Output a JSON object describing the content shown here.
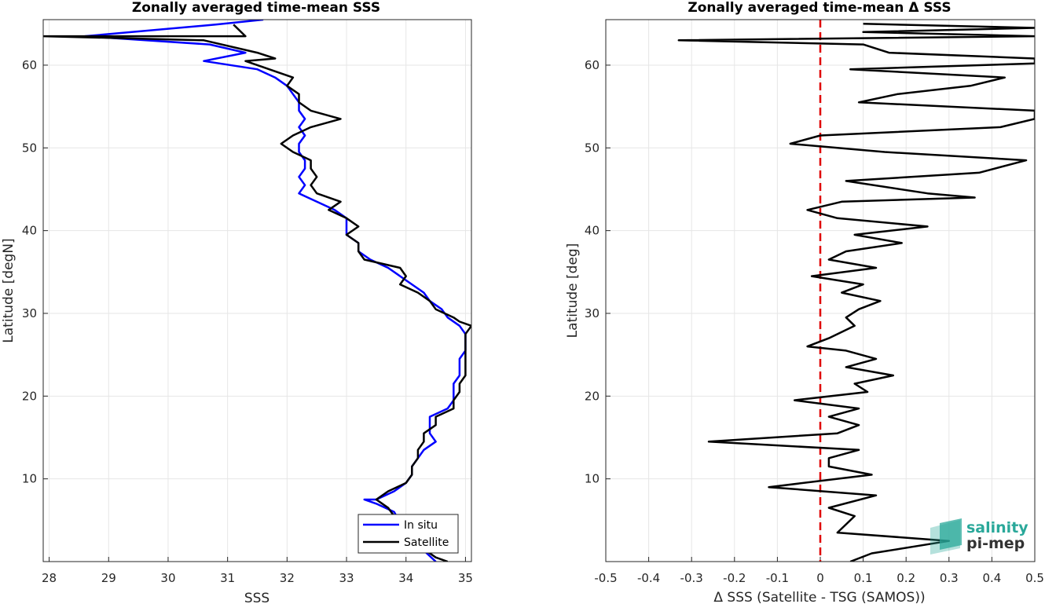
{
  "chart_data": [
    {
      "type": "line",
      "title": "Zonally averaged time-mean SSS",
      "xlabel": "SSS",
      "ylabel": "Latitude [degN]",
      "xlim": [
        27.9,
        35.1
      ],
      "ylim": [
        0,
        65.5
      ],
      "xticks": [
        "28",
        "29",
        "30",
        "31",
        "32",
        "33",
        "34",
        "35"
      ],
      "yticks": [
        "10",
        "20",
        "30",
        "40",
        "50",
        "60"
      ],
      "grid": true,
      "legend": {
        "position": "bottom-right",
        "entries": [
          "In situ",
          "Satellite"
        ]
      },
      "series": [
        {
          "name": "In situ",
          "color": "#0000ff",
          "points": [
            [
              31.6,
              65.5
            ],
            [
              30.8,
              64.9
            ],
            [
              28.6,
              63.5
            ],
            [
              30.7,
              62.5
            ],
            [
              31.3,
              61.5
            ],
            [
              30.6,
              60.5
            ],
            [
              31.5,
              59.5
            ],
            [
              31.8,
              58.5
            ],
            [
              32.0,
              57.5
            ],
            [
              32.1,
              56.5
            ],
            [
              32.2,
              55.5
            ],
            [
              32.2,
              54.5
            ],
            [
              32.3,
              53.5
            ],
            [
              32.2,
              52.5
            ],
            [
              32.3,
              51.5
            ],
            [
              32.2,
              50.5
            ],
            [
              32.2,
              49.5
            ],
            [
              32.3,
              48.5
            ],
            [
              32.3,
              47.5
            ],
            [
              32.2,
              46.5
            ],
            [
              32.3,
              45.5
            ],
            [
              32.2,
              44.5
            ],
            [
              32.5,
              43.5
            ],
            [
              32.8,
              42.5
            ],
            [
              33.0,
              41.5
            ],
            [
              33.0,
              40.5
            ],
            [
              33.0,
              39.5
            ],
            [
              33.2,
              38.5
            ],
            [
              33.2,
              37.5
            ],
            [
              33.4,
              36.5
            ],
            [
              33.7,
              35.5
            ],
            [
              33.9,
              34.5
            ],
            [
              34.1,
              33.5
            ],
            [
              34.3,
              32.5
            ],
            [
              34.4,
              31.5
            ],
            [
              34.6,
              30.5
            ],
            [
              34.7,
              29.5
            ],
            [
              34.9,
              28.5
            ],
            [
              35.0,
              27.5
            ],
            [
              35.0,
              26.5
            ],
            [
              35.0,
              25.5
            ],
            [
              34.9,
              24.5
            ],
            [
              34.9,
              23.5
            ],
            [
              34.9,
              22.5
            ],
            [
              34.8,
              21.5
            ],
            [
              34.8,
              20.5
            ],
            [
              34.8,
              19.5
            ],
            [
              34.7,
              18.5
            ],
            [
              34.4,
              17.5
            ],
            [
              34.4,
              16.5
            ],
            [
              34.4,
              15.5
            ],
            [
              34.5,
              14.5
            ],
            [
              34.3,
              13.5
            ],
            [
              34.2,
              12.5
            ],
            [
              34.1,
              11.5
            ],
            [
              34.1,
              10.5
            ],
            [
              34.0,
              9.5
            ],
            [
              33.8,
              8.5
            ],
            [
              33.5,
              7.5
            ],
            [
              33.3,
              7.5
            ],
            [
              33.5,
              7.0
            ],
            [
              33.8,
              6.0
            ],
            [
              34.0,
              3.5
            ],
            [
              34.2,
              2.0
            ],
            [
              34.5,
              0.0
            ]
          ]
        },
        {
          "name": "Satellite",
          "color": "#000000",
          "points": [
            [
              31.1,
              64.9
            ],
            [
              31.3,
              63.5
            ],
            [
              27.9,
              63.5
            ],
            [
              30.6,
              63.0
            ],
            [
              31.5,
              61.5
            ],
            [
              31.8,
              60.8
            ],
            [
              31.3,
              60.5
            ],
            [
              31.7,
              59.5
            ],
            [
              32.1,
              58.5
            ],
            [
              32.0,
              57.5
            ],
            [
              32.2,
              56.5
            ],
            [
              32.2,
              55.5
            ],
            [
              32.4,
              54.5
            ],
            [
              32.9,
              53.5
            ],
            [
              32.4,
              52.5
            ],
            [
              32.1,
              51.5
            ],
            [
              31.9,
              50.5
            ],
            [
              32.1,
              49.5
            ],
            [
              32.4,
              48.5
            ],
            [
              32.4,
              47.5
            ],
            [
              32.5,
              46.5
            ],
            [
              32.4,
              45.5
            ],
            [
              32.5,
              44.5
            ],
            [
              32.9,
              43.5
            ],
            [
              32.7,
              42.5
            ],
            [
              33.0,
              41.5
            ],
            [
              33.2,
              40.5
            ],
            [
              33.0,
              39.5
            ],
            [
              33.2,
              38.5
            ],
            [
              33.2,
              37.5
            ],
            [
              33.3,
              36.5
            ],
            [
              33.9,
              35.5
            ],
            [
              34.0,
              34.5
            ],
            [
              33.9,
              33.5
            ],
            [
              34.2,
              32.5
            ],
            [
              34.4,
              31.5
            ],
            [
              34.5,
              30.5
            ],
            [
              34.8,
              29.5
            ],
            [
              34.9,
              29.0
            ],
            [
              35.1,
              28.5
            ],
            [
              35.0,
              27.5
            ],
            [
              35.0,
              26.5
            ],
            [
              35.0,
              25.5
            ],
            [
              35.0,
              24.5
            ],
            [
              35.0,
              23.5
            ],
            [
              35.0,
              22.5
            ],
            [
              34.9,
              21.5
            ],
            [
              34.9,
              20.5
            ],
            [
              34.8,
              19.5
            ],
            [
              34.8,
              18.5
            ],
            [
              34.5,
              17.5
            ],
            [
              34.5,
              16.5
            ],
            [
              34.3,
              15.5
            ],
            [
              34.3,
              14.5
            ],
            [
              34.2,
              13.5
            ],
            [
              34.2,
              12.5
            ],
            [
              34.1,
              11.5
            ],
            [
              34.1,
              10.5
            ],
            [
              34.0,
              9.5
            ],
            [
              33.7,
              8.5
            ],
            [
              33.5,
              7.5
            ],
            [
              33.6,
              7.0
            ],
            [
              33.7,
              6.5
            ],
            [
              33.8,
              5.5
            ],
            [
              34.0,
              3.5
            ],
            [
              34.2,
              2.0
            ],
            [
              34.5,
              0.5
            ],
            [
              34.7,
              0.0
            ]
          ]
        }
      ]
    },
    {
      "type": "line",
      "title": "Zonally averaged time-mean Δ SSS",
      "xlabel": "Δ SSS (Satellite - TSG (SAMOS))",
      "ylabel": "Latitude [deg]",
      "xlim": [
        -0.5,
        0.5
      ],
      "ylim": [
        0,
        65.5
      ],
      "xticks": [
        "-0.5",
        "-0.4",
        "-0.3",
        "-0.2",
        "-0.1",
        "0",
        "0.1",
        "0.2",
        "0.3",
        "0.4",
        "0.5"
      ],
      "yticks": [
        "10",
        "20",
        "30",
        "40",
        "50",
        "60"
      ],
      "grid": true,
      "reference_line": {
        "x": 0,
        "color": "#e00000",
        "style": "dashed"
      },
      "series": [
        {
          "color": "#000000",
          "points": [
            [
              0.1,
              65.0
            ],
            [
              0.5,
              64.5
            ],
            [
              0.1,
              64.0
            ],
            [
              0.5,
              63.5
            ],
            [
              -0.33,
              63.0
            ],
            [
              0.1,
              62.5
            ],
            [
              0.16,
              61.5
            ],
            [
              0.5,
              60.8
            ],
            [
              0.5,
              60.2
            ],
            [
              0.07,
              59.5
            ],
            [
              0.43,
              58.5
            ],
            [
              0.35,
              57.5
            ],
            [
              0.18,
              56.5
            ],
            [
              0.09,
              55.5
            ],
            [
              0.5,
              54.5
            ],
            [
              0.5,
              53.5
            ],
            [
              0.42,
              52.5
            ],
            [
              0.0,
              51.5
            ],
            [
              -0.07,
              50.5
            ],
            [
              0.15,
              49.5
            ],
            [
              0.48,
              48.5
            ],
            [
              0.37,
              47.0
            ],
            [
              0.06,
              46.0
            ],
            [
              0.25,
              44.5
            ],
            [
              0.36,
              44.0
            ],
            [
              0.05,
              43.5
            ],
            [
              -0.03,
              42.5
            ],
            [
              0.04,
              41.5
            ],
            [
              0.25,
              40.5
            ],
            [
              0.08,
              39.5
            ],
            [
              0.19,
              38.5
            ],
            [
              0.06,
              37.5
            ],
            [
              0.02,
              36.5
            ],
            [
              0.13,
              35.5
            ],
            [
              -0.02,
              34.5
            ],
            [
              0.1,
              33.5
            ],
            [
              0.05,
              32.5
            ],
            [
              0.14,
              31.5
            ],
            [
              0.09,
              30.5
            ],
            [
              0.06,
              29.5
            ],
            [
              0.08,
              28.5
            ],
            [
              0.02,
              27.0
            ],
            [
              -0.03,
              26.0
            ],
            [
              0.06,
              25.5
            ],
            [
              0.13,
              24.5
            ],
            [
              0.06,
              23.5
            ],
            [
              0.17,
              22.5
            ],
            [
              0.08,
              21.5
            ],
            [
              0.11,
              20.5
            ],
            [
              -0.06,
              19.5
            ],
            [
              0.09,
              18.5
            ],
            [
              0.02,
              17.5
            ],
            [
              0.09,
              16.5
            ],
            [
              0.04,
              15.5
            ],
            [
              -0.26,
              14.5
            ],
            [
              0.09,
              13.5
            ],
            [
              0.02,
              12.5
            ],
            [
              0.02,
              11.5
            ],
            [
              0.12,
              10.5
            ],
            [
              -0.12,
              9.0
            ],
            [
              0.13,
              8.0
            ],
            [
              0.02,
              6.5
            ],
            [
              0.08,
              5.5
            ],
            [
              0.04,
              3.5
            ],
            [
              0.3,
              2.5
            ],
            [
              0.12,
              1.0
            ],
            [
              0.07,
              0.0
            ]
          ]
        }
      ]
    }
  ],
  "logo": {
    "line1": "salinity",
    "line2": "pi-mep"
  }
}
